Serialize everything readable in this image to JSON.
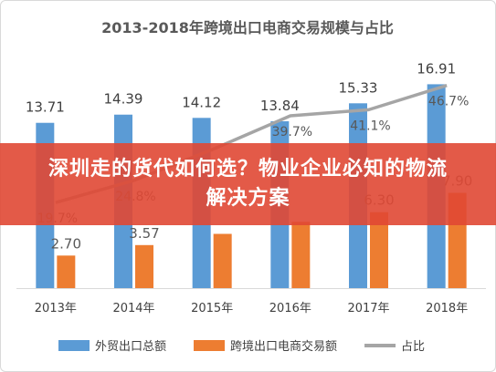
{
  "banner": {
    "title": "深圳走的货代如何选？物业企业必知的物流解决方案"
  },
  "colors": {
    "export_bar": "#5b9bd5",
    "ecommerce_bar": "#ed7d31",
    "share_line": "#a5a5a5",
    "banner": "#e04834"
  },
  "chart_data": {
    "type": "bar",
    "title": "2013-2018年跨境出口电商交易规模与占比",
    "categories": [
      "2013年",
      "2014年",
      "2015年",
      "2016年",
      "2017年",
      "2018年"
    ],
    "series": [
      {
        "name": "外贸出口总额",
        "type": "bar",
        "color": "#5b9bd5",
        "values": [
          13.71,
          14.39,
          14.12,
          13.84,
          15.33,
          16.91
        ],
        "labels": [
          "13.71",
          "14.39",
          "14.12",
          "13.84",
          "15.33",
          "16.91"
        ]
      },
      {
        "name": "跨境出口电商交易额",
        "type": "bar",
        "color": "#ed7d31",
        "values": [
          2.7,
          3.57,
          4.5,
          5.5,
          6.3,
          7.9
        ],
        "labels": [
          "2.70",
          "3.57",
          "",
          "",
          "6.30",
          "7.90"
        ]
      },
      {
        "name": "占比",
        "type": "line",
        "axis": "secondary",
        "color": "#a5a5a5",
        "values": [
          19.7,
          24.8,
          31.9,
          39.7,
          41.1,
          46.7
        ],
        "labels": [
          "19.7%",
          "24.8%",
          "",
          "39.7%",
          "41.1%",
          "46.7%"
        ]
      }
    ],
    "ylim": [
      0,
      18
    ],
    "y2lim": [
      0,
      50
    ],
    "grid": false,
    "legend": "bottom"
  }
}
